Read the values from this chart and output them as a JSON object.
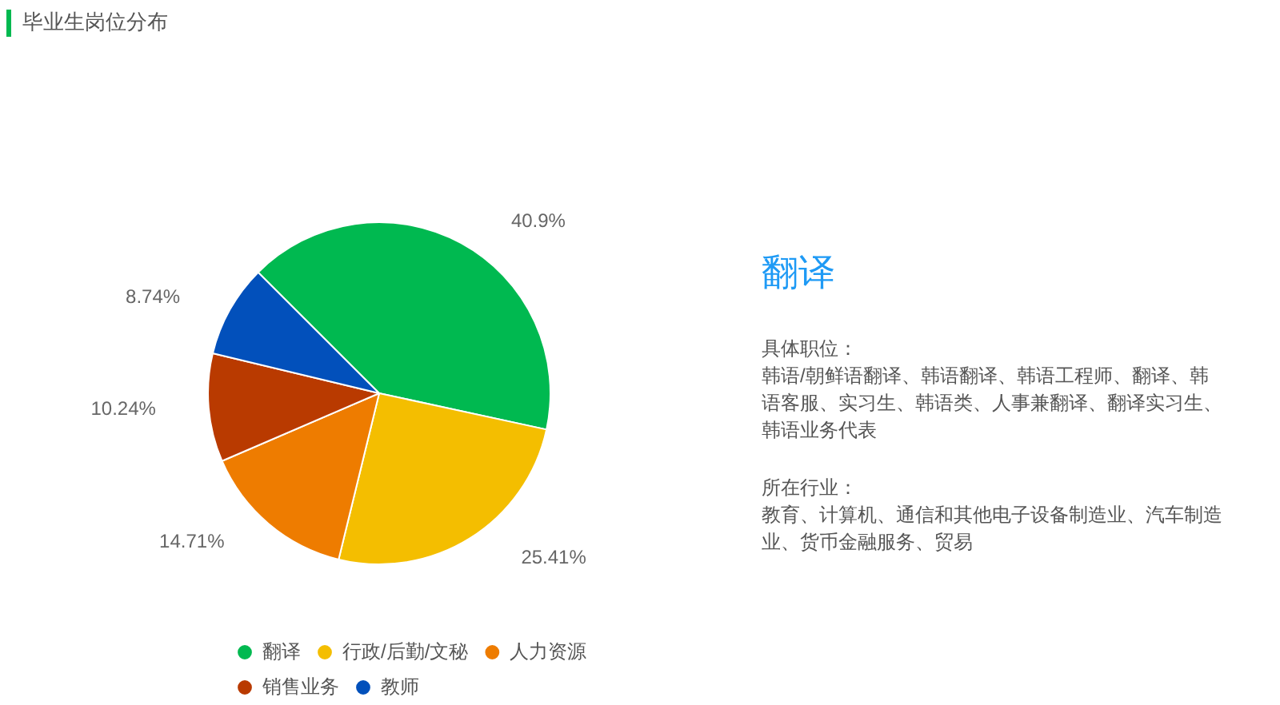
{
  "chart_data": [
    {
      "type": "pie",
      "title": "毕业生岗位分布",
      "categories": [
        "翻译",
        "行政/后勤/文秘",
        "人力资源",
        "销售业务",
        "教师"
      ],
      "values": [
        40.9,
        25.41,
        14.71,
        10.24,
        8.74
      ],
      "colors": [
        "#00b950",
        "#f4be00",
        "#ee7c00",
        "#b93a00",
        "#0250bb"
      ],
      "value_labels": [
        "40.9%",
        "25.41%",
        "14.71%",
        "10.24%",
        "8.74%"
      ],
      "legend": "bottom"
    },
    {
      "type": "other",
      "title": "翻译",
      "annotations": [
        "具体职位：",
        "韩语/朝鲜语翻译、韩语翻译、韩语工程师、翻译、韩语客服、实习生、韩语类、人事兼翻译、翻译实习生、韩语业务代表",
        "所在行业：",
        "教育、计算机、通信和其他电子设备制造业、汽车制造业、货币金融服务、贸易"
      ]
    }
  ]
}
